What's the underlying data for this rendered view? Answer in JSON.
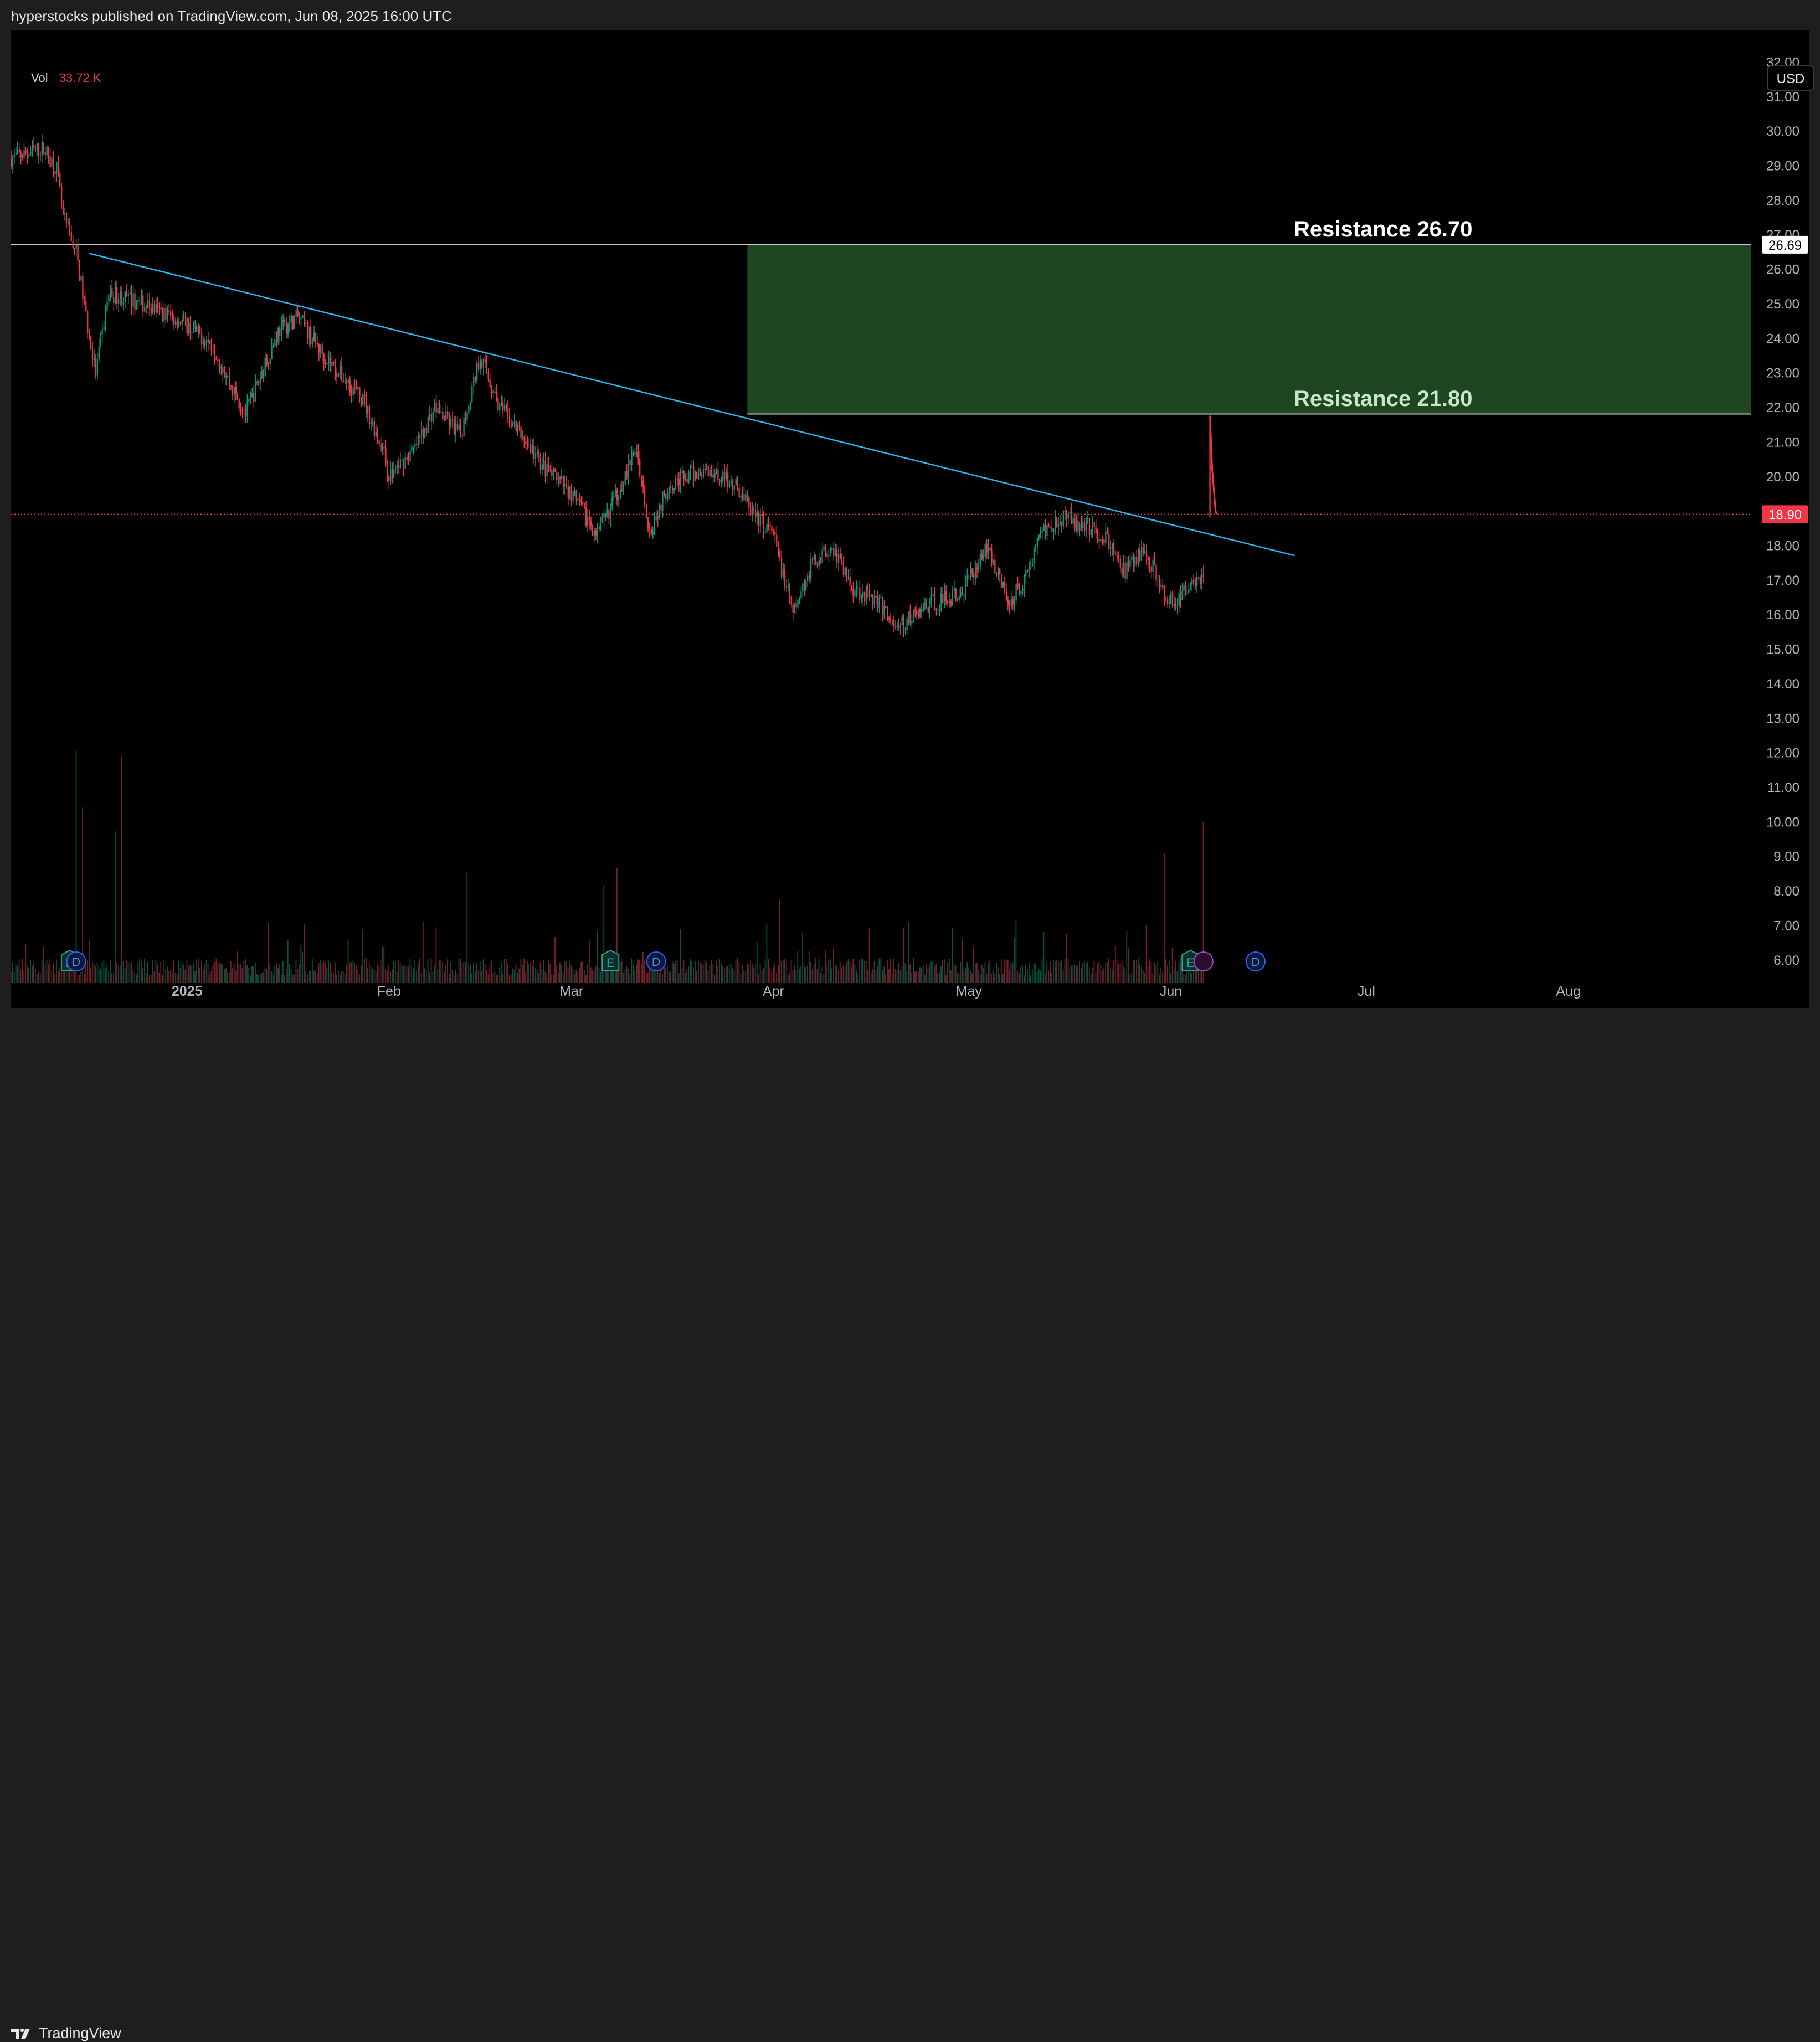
{
  "header": {
    "publish_note": "hyperstocks published on TradingView.com, Jun 08, 2025 16:00 UTC"
  },
  "footer": {
    "brand": "TradingView"
  },
  "legend": {
    "vol_label": "Vol",
    "vol_value": "33.72 K"
  },
  "currency": "USD",
  "colors": {
    "background": "#000000",
    "up": "#089981",
    "down": "#f23645",
    "trendline": "#29b6f6",
    "zone": "#1e4620",
    "resistance_line": "#c8c8c8",
    "current_price": "#f23645",
    "resistance_upper_text": "#ffffff",
    "resistance_lower_text": "#c8e6c9"
  },
  "chart_data": {
    "type": "candlestick",
    "ylim": [
      5.5,
      32.6
    ],
    "y_ticks": [
      6,
      7,
      8,
      9,
      10,
      11,
      12,
      13,
      14,
      15,
      16,
      17,
      18,
      19,
      20,
      21,
      22,
      23,
      24,
      25,
      26,
      27,
      28,
      29,
      30,
      31,
      32
    ],
    "y_tick_labels": [
      "6.00",
      "7.00",
      "8.00",
      "9.00",
      "10.00",
      "11.00",
      "12.00",
      "13.00",
      "14.00",
      "15.00",
      "16.00",
      "17.00",
      "18.00",
      "19.00",
      "20.00",
      "21.00",
      "22.00",
      "23.00",
      "24.00",
      "25.00",
      "26.00",
      "27.00",
      "28.00",
      "29.00",
      "30.00",
      "31.00",
      "32.00"
    ],
    "xlim": [
      "2024-12-05",
      "2025-08-29"
    ],
    "x_ticks": [
      {
        "date": "2025-01-01",
        "label": "2025",
        "bold": true
      },
      {
        "date": "2025-02-01",
        "label": "Feb",
        "bold": false
      },
      {
        "date": "2025-03-01",
        "label": "Mar",
        "bold": false
      },
      {
        "date": "2025-04-01",
        "label": "Apr",
        "bold": false
      },
      {
        "date": "2025-05-01",
        "label": "May",
        "bold": false
      },
      {
        "date": "2025-06-01",
        "label": "Jun",
        "bold": false
      },
      {
        "date": "2025-07-01",
        "label": "Jul",
        "bold": false
      },
      {
        "date": "2025-08-01",
        "label": "Aug",
        "bold": false
      }
    ],
    "price_path": [
      [
        "2024-12-05",
        29.2
      ],
      [
        "2024-12-10",
        29.5
      ],
      [
        "2024-12-12",
        28.9
      ],
      [
        "2024-12-13",
        27.5
      ],
      [
        "2024-12-15",
        26.5
      ],
      [
        "2024-12-17",
        24.0
      ],
      [
        "2024-12-18",
        23.0
      ],
      [
        "2024-12-20",
        25.3
      ],
      [
        "2024-12-25",
        25.0
      ],
      [
        "2024-12-31",
        24.5
      ],
      [
        "2025-01-05",
        23.8
      ],
      [
        "2025-01-08",
        22.5
      ],
      [
        "2025-01-10",
        21.8
      ],
      [
        "2025-01-15",
        24.2
      ],
      [
        "2025-01-18",
        24.6
      ],
      [
        "2025-01-22",
        23.5
      ],
      [
        "2025-01-28",
        22.2
      ],
      [
        "2025-01-31",
        20.8
      ],
      [
        "2025-02-01",
        20.0
      ],
      [
        "2025-02-05",
        20.8
      ],
      [
        "2025-02-08",
        22.0
      ],
      [
        "2025-02-12",
        21.2
      ],
      [
        "2025-02-15",
        23.5
      ],
      [
        "2025-02-18",
        22.0
      ],
      [
        "2025-02-22",
        21.0
      ],
      [
        "2025-02-25",
        20.2
      ],
      [
        "2025-03-01",
        19.5
      ],
      [
        "2025-03-05",
        18.3
      ],
      [
        "2025-03-08",
        19.5
      ],
      [
        "2025-03-11",
        20.8
      ],
      [
        "2025-03-13",
        18.4
      ],
      [
        "2025-03-16",
        19.8
      ],
      [
        "2025-03-22",
        20.2
      ],
      [
        "2025-03-26",
        19.8
      ],
      [
        "2025-03-29",
        18.9
      ],
      [
        "2025-04-01",
        18.3
      ],
      [
        "2025-04-04",
        16.0
      ],
      [
        "2025-04-07",
        17.5
      ],
      [
        "2025-04-10",
        18.0
      ],
      [
        "2025-04-13",
        16.8
      ],
      [
        "2025-04-17",
        16.4
      ],
      [
        "2025-04-20",
        15.6
      ],
      [
        "2025-04-25",
        16.3
      ],
      [
        "2025-04-30",
        16.6
      ],
      [
        "2025-05-02",
        17.4
      ],
      [
        "2025-05-04",
        18.0
      ],
      [
        "2025-05-07",
        16.3
      ],
      [
        "2025-05-10",
        17.2
      ],
      [
        "2025-05-12",
        18.4
      ],
      [
        "2025-05-15",
        18.8
      ],
      [
        "2025-05-19",
        18.6
      ],
      [
        "2025-05-22",
        18.2
      ],
      [
        "2025-05-25",
        17.2
      ],
      [
        "2025-05-28",
        17.9
      ],
      [
        "2025-05-31",
        16.6
      ],
      [
        "2025-06-02",
        16.3
      ],
      [
        "2025-06-04",
        17.0
      ],
      [
        "2025-06-06",
        17.1
      ]
    ],
    "spike": {
      "date": "2025-06-07",
      "open": 21.6,
      "high": 21.75,
      "low": 18.8,
      "close": 18.9
    },
    "last_price": 18.9,
    "last_price_label": "18.90",
    "resistance_upper": {
      "value": 26.7,
      "axis_label": "26.69",
      "label": "Resistance 26.70"
    },
    "resistance_lower": {
      "value": 21.8,
      "label": "Resistance 21.80"
    },
    "resistance_zone": {
      "start": "2025-03-28",
      "end": "2025-08-29",
      "low": 21.8,
      "high": 26.7
    },
    "trendline": {
      "start": [
        "2024-12-17",
        26.45
      ],
      "end": [
        "2025-06-20",
        17.7
      ]
    },
    "volume_max_label": "peak",
    "volume_bars_peak": [
      [
        "2024-12-15",
        0.95
      ],
      [
        "2024-12-16",
        0.72
      ],
      [
        "2024-12-21",
        0.62
      ],
      [
        "2024-12-22",
        0.93
      ],
      [
        "2025-02-13",
        0.45
      ],
      [
        "2025-03-06",
        0.4
      ],
      [
        "2025-03-08",
        0.47
      ],
      [
        "2025-04-02",
        0.34
      ],
      [
        "2025-05-31",
        0.53
      ],
      [
        "2025-06-06",
        0.66
      ],
      [
        "2025-06-07",
        0.68
      ]
    ],
    "events": [
      {
        "date": "2024-12-14",
        "label": "E",
        "kind": "earnings"
      },
      {
        "date": "2024-12-15",
        "label": "D",
        "kind": "dividend"
      },
      {
        "date": "2025-03-07",
        "label": "E",
        "kind": "earnings"
      },
      {
        "date": "2025-03-14",
        "label": "D",
        "kind": "dividend"
      },
      {
        "date": "2025-06-04",
        "label": "E",
        "kind": "earnings"
      },
      {
        "date": "2025-06-06",
        "label": "",
        "kind": "split"
      },
      {
        "date": "2025-06-14",
        "label": "D",
        "kind": "dividend"
      }
    ]
  }
}
